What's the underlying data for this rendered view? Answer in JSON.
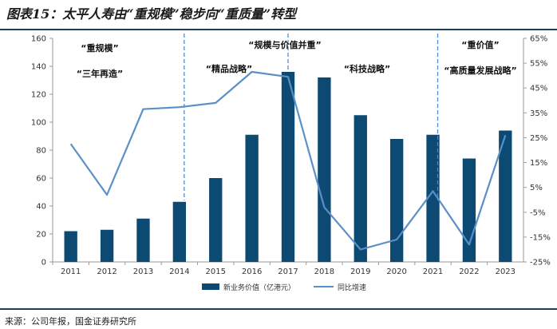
{
  "header": {
    "title": "图表15：太平人寿由“重规模”稳步向“重质量”转型"
  },
  "footer": {
    "source": "来源：公司年报，国金证券研究所"
  },
  "colors": {
    "bar": "#0d4a73",
    "line": "#5b8fc7",
    "divider": "#4a86c8"
  },
  "chart_data": {
    "type": "bar",
    "categories": [
      "2011",
      "2012",
      "2013",
      "2014",
      "2015",
      "2016",
      "2017",
      "2018",
      "2019",
      "2020",
      "2021",
      "2022",
      "2023"
    ],
    "series": [
      {
        "name": "新业务价值（亿港元）",
        "type": "bar",
        "axis": "left",
        "values": [
          22,
          23,
          31,
          43,
          60,
          91,
          136,
          132,
          105,
          88,
          91,
          74,
          94
        ]
      },
      {
        "name": "同比增速",
        "type": "line",
        "axis": "right",
        "values": [
          22.5,
          2,
          36.5,
          37.3,
          39,
          51.5,
          49.5,
          -3,
          -20,
          -16,
          3.5,
          -18,
          26
        ]
      }
    ],
    "y_left": {
      "min": 0,
      "max": 160,
      "ticks": [
        "0",
        "20",
        "40",
        "60",
        "80",
        "100",
        "120",
        "140",
        "160"
      ]
    },
    "y_right": {
      "min": -25,
      "max": 65,
      "ticks": [
        "-25%",
        "-15%",
        "-5%",
        "5%",
        "15%",
        "25%",
        "35%",
        "45%",
        "55%",
        "65%"
      ]
    },
    "grid": false,
    "legend_position": "bottom",
    "dividers_after": [
      "2014",
      "2021"
    ],
    "annotations": [
      {
        "text": "“重规模”",
        "near": "2012.5"
      },
      {
        "text": "“三年再造”",
        "near": "2012.5"
      },
      {
        "text": "“规模与价值并重”",
        "near": "2017"
      },
      {
        "text": "“精品战略”",
        "near": "2015.5"
      },
      {
        "text": "“科技战略”",
        "near": "2019"
      },
      {
        "text": "“重价值”",
        "near": "2022"
      },
      {
        "text": "“高质量发展战略”",
        "near": "2022"
      }
    ]
  }
}
